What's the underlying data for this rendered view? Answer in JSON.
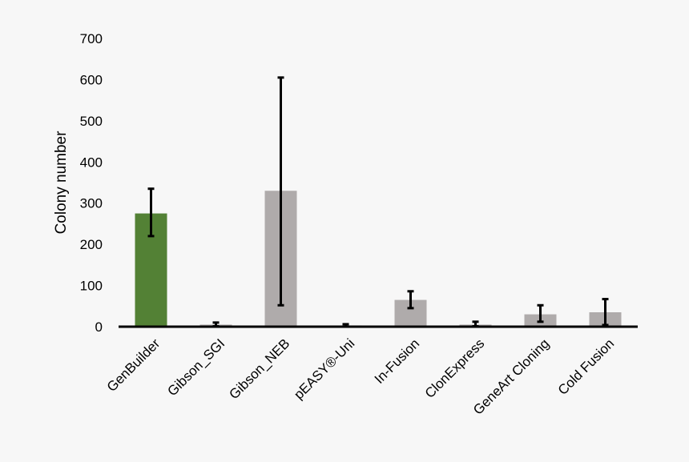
{
  "chart_data": {
    "type": "bar",
    "title": "",
    "xlabel": "",
    "ylabel": "Colony number",
    "ylim": [
      0,
      700
    ],
    "yticks": [
      0,
      100,
      200,
      300,
      400,
      500,
      600,
      700
    ],
    "grid": false,
    "legend": "none",
    "categories": [
      "GenBuilder",
      "Gibson_SGI",
      "Gibson_NEB",
      "pEASY®-Uni",
      "In-Fusion",
      "ClonExpress",
      "GeneArt Cloning",
      "Cold Fusion"
    ],
    "values": [
      275,
      5,
      330,
      3,
      65,
      5,
      30,
      35
    ],
    "error_low": [
      220,
      1,
      52,
      0,
      45,
      1,
      12,
      4
    ],
    "error_high": [
      335,
      10,
      605,
      6,
      86,
      12,
      52,
      67
    ],
    "colors": [
      "#538135",
      "#afabab",
      "#afabab",
      "#afabab",
      "#afabab",
      "#afabab",
      "#afabab",
      "#afabab"
    ]
  }
}
